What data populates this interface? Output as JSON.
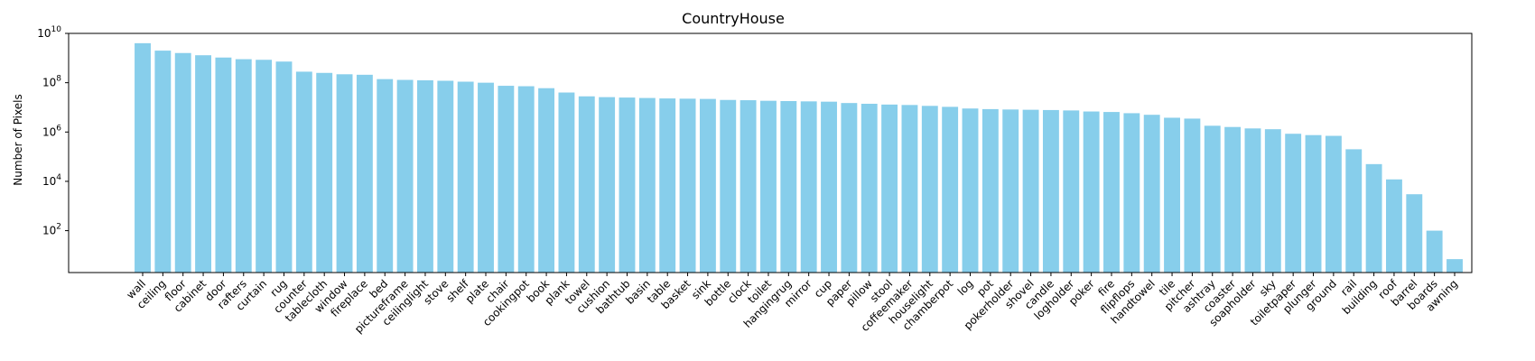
{
  "chart_data": {
    "type": "bar",
    "title": "CountryHouse",
    "xlabel": "",
    "ylabel": "Number of Pixels",
    "yscale": "log",
    "ylim": [
      2,
      10000000000
    ],
    "yticks": [
      {
        "value": 100,
        "base": "10",
        "exp": "2"
      },
      {
        "value": 10000,
        "base": "10",
        "exp": "4"
      },
      {
        "value": 1000000,
        "base": "10",
        "exp": "6"
      },
      {
        "value": 100000000,
        "base": "10",
        "exp": "8"
      },
      {
        "value": 10000000000,
        "base": "10",
        "exp": "10"
      }
    ],
    "bar_color": "#87CEEB",
    "grid": false,
    "categories": [
      "wall",
      "ceiling",
      "floor",
      "cabinet",
      "door",
      "rafters",
      "curtain",
      "rug",
      "counter",
      "tablecloth",
      "window",
      "fireplace",
      "bed",
      "pictureframe",
      "ceilinglight",
      "stove",
      "shelf",
      "plate",
      "chair",
      "cookingpot",
      "book",
      "plank",
      "towel",
      "cushion",
      "bathtub",
      "basin",
      "table",
      "basket",
      "sink",
      "bottle",
      "clock",
      "toilet",
      "hangingrug",
      "mirror",
      "cup",
      "paper",
      "pillow",
      "stool",
      "coffeemaker",
      "houselight",
      "chamberpot",
      "log",
      "pot",
      "pokerholder",
      "shovel",
      "candle",
      "logholder",
      "poker",
      "fire",
      "flipflops",
      "handtowel",
      "tile",
      "pitcher",
      "ashtray",
      "coaster",
      "soapholder",
      "sky",
      "toiletpaper",
      "plunger",
      "ground",
      "rail",
      "building",
      "roof",
      "barrel",
      "boards",
      "awning"
    ],
    "values": [
      4000000000,
      2000000000,
      1600000000,
      1300000000,
      1050000000,
      900000000,
      850000000,
      720000000,
      280000000,
      250000000,
      220000000,
      210000000,
      140000000,
      130000000,
      125000000,
      120000000,
      110000000,
      100000000,
      75000000,
      72000000,
      60000000,
      40000000,
      28000000,
      26000000,
      25000000,
      24000000,
      23000000,
      22500000,
      22000000,
      20000000,
      19500000,
      18500000,
      18000000,
      17500000,
      17000000,
      15000000,
      14000000,
      13000000,
      12500000,
      11500000,
      10500000,
      9000000,
      8500000,
      8200000,
      8000000,
      7800000,
      7500000,
      6800000,
      6500000,
      5800000,
      5000000,
      3800000,
      3500000,
      1800000,
      1600000,
      1400000,
      1300000,
      850000,
      750000,
      700000,
      200000,
      50000,
      12000,
      3000,
      100,
      7
    ]
  }
}
